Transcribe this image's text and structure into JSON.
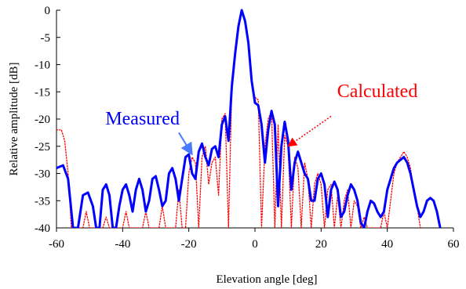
{
  "chart_data": {
    "type": "line",
    "title": "",
    "xlabel": "Elevation angle [deg]",
    "ylabel": "Relative amplitude [dB]",
    "xlim": [
      -60,
      60
    ],
    "ylim": [
      -40,
      0
    ],
    "xticks": [
      -60,
      -40,
      -20,
      0,
      20,
      40,
      60
    ],
    "yticks": [
      0,
      -5,
      -10,
      -15,
      -20,
      -25,
      -30,
      -35,
      -40
    ],
    "xtick_labels": [
      "-60",
      "-40",
      "-20",
      "0",
      "20",
      "40",
      "60"
    ],
    "ytick_labels": [
      "0",
      "-5",
      "-10",
      "-15",
      "-20",
      "-25",
      "-30",
      "-35",
      "-40"
    ],
    "grid": {
      "x": false,
      "y": false
    },
    "legend": "none",
    "series": [
      {
        "name": "Measured",
        "color": "#0000ff",
        "style": "solid",
        "points": [
          [
            -60,
            -29
          ],
          [
            -58,
            -28.5
          ],
          [
            -56.5,
            -31
          ],
          [
            -55,
            -40
          ],
          [
            -53.5,
            -40
          ],
          [
            -52,
            -34
          ],
          [
            -50.5,
            -33.5
          ],
          [
            -49,
            -36
          ],
          [
            -48,
            -40
          ],
          [
            -47,
            -40
          ],
          [
            -46,
            -33
          ],
          [
            -45,
            -32
          ],
          [
            -44,
            -34
          ],
          [
            -43,
            -40
          ],
          [
            -42,
            -40
          ],
          [
            -41,
            -36
          ],
          [
            -40,
            -33
          ],
          [
            -39,
            -32
          ],
          [
            -38,
            -34
          ],
          [
            -37,
            -37
          ],
          [
            -36,
            -33
          ],
          [
            -35,
            -31
          ],
          [
            -34,
            -33
          ],
          [
            -33,
            -37
          ],
          [
            -32,
            -35
          ],
          [
            -31,
            -31
          ],
          [
            -30,
            -30.5
          ],
          [
            -29,
            -33
          ],
          [
            -28,
            -36
          ],
          [
            -27,
            -35
          ],
          [
            -26,
            -30
          ],
          [
            -25,
            -29
          ],
          [
            -24,
            -31
          ],
          [
            -23,
            -35
          ],
          [
            -22,
            -31
          ],
          [
            -21,
            -27
          ],
          [
            -20,
            -26.5
          ],
          [
            -19,
            -30
          ],
          [
            -18,
            -31
          ],
          [
            -17,
            -26
          ],
          [
            -16,
            -24.5
          ],
          [
            -15,
            -27
          ],
          [
            -14,
            -28.5
          ],
          [
            -13,
            -25.5
          ],
          [
            -12,
            -25
          ],
          [
            -11,
            -27
          ],
          [
            -10,
            -21
          ],
          [
            -9,
            -19.5
          ],
          [
            -8,
            -24
          ],
          [
            -7,
            -14
          ],
          [
            -6,
            -8
          ],
          [
            -5,
            -3
          ],
          [
            -4,
            0
          ],
          [
            -3,
            -2
          ],
          [
            -2,
            -6
          ],
          [
            -1,
            -13
          ],
          [
            0,
            -17
          ],
          [
            1,
            -17.5
          ],
          [
            2,
            -21
          ],
          [
            3,
            -28
          ],
          [
            4,
            -22
          ],
          [
            5,
            -18.5
          ],
          [
            6,
            -21
          ],
          [
            7,
            -36
          ],
          [
            8,
            -25
          ],
          [
            9,
            -20.5
          ],
          [
            10,
            -24
          ],
          [
            11,
            -33
          ],
          [
            12,
            -28
          ],
          [
            13,
            -26
          ],
          [
            14,
            -28
          ],
          [
            15,
            -30
          ],
          [
            16,
            -31
          ],
          [
            17,
            -35
          ],
          [
            18,
            -35
          ],
          [
            19,
            -31
          ],
          [
            20,
            -30
          ],
          [
            21,
            -32
          ],
          [
            22,
            -38
          ],
          [
            23,
            -33
          ],
          [
            24,
            -31.5
          ],
          [
            25,
            -33
          ],
          [
            26,
            -38
          ],
          [
            27,
            -37
          ],
          [
            28,
            -34
          ],
          [
            29,
            -32
          ],
          [
            30,
            -33
          ],
          [
            31,
            -35
          ],
          [
            32,
            -39
          ],
          [
            33,
            -40
          ],
          [
            34,
            -37
          ],
          [
            35,
            -35
          ],
          [
            36,
            -35.5
          ],
          [
            37,
            -37
          ],
          [
            38,
            -38
          ],
          [
            39,
            -37
          ],
          [
            40,
            -33
          ],
          [
            41,
            -31
          ],
          [
            42,
            -29
          ],
          [
            43,
            -28
          ],
          [
            44,
            -27.5
          ],
          [
            45,
            -27
          ],
          [
            46,
            -28
          ],
          [
            47,
            -30
          ],
          [
            48,
            -33
          ],
          [
            49,
            -36
          ],
          [
            50,
            -38
          ],
          [
            51,
            -37
          ],
          [
            52,
            -35
          ],
          [
            53,
            -34.5
          ],
          [
            54,
            -35
          ],
          [
            55,
            -37
          ],
          [
            56,
            -40
          ]
        ]
      },
      {
        "name": "Calculated",
        "color": "#ff0000",
        "style": "dotted",
        "points": [
          [
            -60,
            -22
          ],
          [
            -58.5,
            -22
          ],
          [
            -57.5,
            -24
          ],
          [
            -56.5,
            -30
          ],
          [
            -55.5,
            -40
          ],
          [
            -52,
            -40
          ],
          [
            -51,
            -37
          ],
          [
            -50,
            -40
          ],
          [
            -46,
            -40
          ],
          [
            -45,
            -38
          ],
          [
            -44,
            -40
          ],
          [
            -40,
            -40
          ],
          [
            -39,
            -37
          ],
          [
            -38,
            -40
          ],
          [
            -34,
            -40
          ],
          [
            -33,
            -37
          ],
          [
            -32,
            -40
          ],
          [
            -29,
            -40
          ],
          [
            -28,
            -36
          ],
          [
            -27,
            -40
          ],
          [
            -24,
            -40
          ],
          [
            -23,
            -33
          ],
          [
            -22,
            -40
          ],
          [
            -21,
            -40
          ],
          [
            -20,
            -30
          ],
          [
            -19,
            -27
          ],
          [
            -18,
            -28
          ],
          [
            -17,
            -40
          ],
          [
            -16,
            -27
          ],
          [
            -15,
            -25
          ],
          [
            -14,
            -32
          ],
          [
            -13,
            -28
          ],
          [
            -12,
            -27
          ],
          [
            -11,
            -34
          ],
          [
            -10,
            -20
          ],
          [
            -9,
            -19
          ],
          [
            -8,
            -40
          ],
          [
            -7,
            -14
          ],
          [
            -6,
            -8
          ],
          [
            -5,
            -3
          ],
          [
            -4,
            0
          ],
          [
            -3,
            -2
          ],
          [
            -2,
            -6
          ],
          [
            -1,
            -13
          ],
          [
            0,
            -16
          ],
          [
            1,
            -16.5
          ],
          [
            2,
            -40
          ],
          [
            3,
            -25
          ],
          [
            4,
            -20
          ],
          [
            5,
            -18.5
          ],
          [
            6,
            -40
          ],
          [
            7,
            -21
          ],
          [
            8,
            -40
          ],
          [
            9,
            -23
          ],
          [
            10,
            -25
          ],
          [
            11,
            -40
          ],
          [
            12,
            -27
          ],
          [
            13,
            -29
          ],
          [
            14,
            -40
          ],
          [
            15,
            -28
          ],
          [
            16,
            -31
          ],
          [
            17,
            -40
          ],
          [
            18,
            -32
          ],
          [
            19,
            -30
          ],
          [
            20,
            -32
          ],
          [
            21,
            -40
          ],
          [
            22,
            -33
          ],
          [
            23,
            -32
          ],
          [
            24,
            -40
          ],
          [
            25,
            -34
          ],
          [
            26,
            -40
          ],
          [
            27,
            -35
          ],
          [
            28,
            -33
          ],
          [
            29,
            -40
          ],
          [
            30,
            -35
          ],
          [
            31,
            -36
          ],
          [
            32,
            -40
          ],
          [
            33,
            -38
          ],
          [
            34,
            -40
          ],
          [
            38,
            -40
          ],
          [
            39,
            -37
          ],
          [
            40,
            -40
          ],
          [
            41,
            -35
          ],
          [
            42,
            -30
          ],
          [
            43,
            -28
          ],
          [
            44,
            -27
          ],
          [
            45,
            -26
          ],
          [
            46,
            -27
          ],
          [
            47,
            -29
          ],
          [
            48,
            -33
          ],
          [
            49,
            -36
          ],
          [
            50,
            -40
          ]
        ]
      }
    ],
    "annotations": [
      {
        "text": "Measured",
        "color": "#0000ff",
        "label_at": [
          -34,
          -21
        ],
        "arrow_from": [
          -23,
          -22.5
        ],
        "arrow_to": [
          -19,
          -26.5
        ],
        "arrow_color": "#4a7bff",
        "arrow_style": "solid"
      },
      {
        "text": "Calculated",
        "color": "#ff0000",
        "label_at": [
          37,
          -16
        ],
        "arrow_from": [
          23,
          -19.5
        ],
        "arrow_to": [
          10,
          -25
        ],
        "arrow_color": "#ff0000",
        "arrow_style": "dotted"
      }
    ]
  }
}
